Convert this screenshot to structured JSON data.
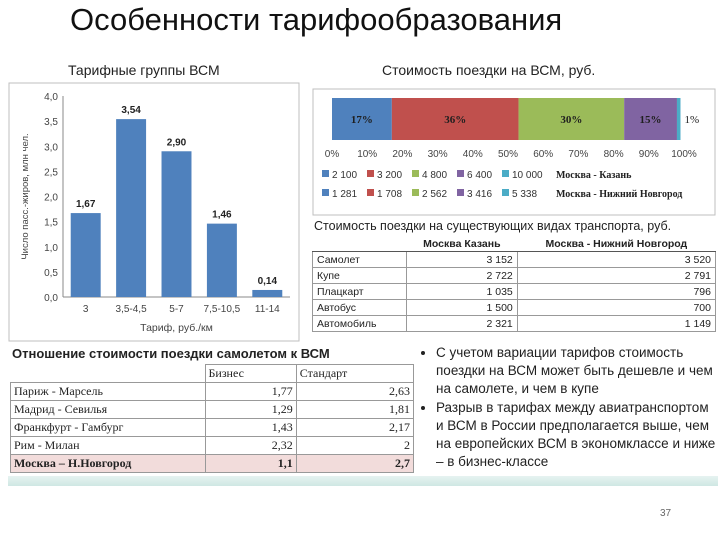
{
  "slide_title": "Особенности тарифообразования",
  "page_number": "37",
  "chart_data": [
    {
      "type": "bar",
      "title": "Тарифные группы ВСМ",
      "xlabel": "Тариф, руб./км",
      "ylabel": "Число пасс.-жиров, млн чел.",
      "categories": [
        "3",
        "3,5-4,5",
        "5-7",
        "7,5-10,5",
        "11-14"
      ],
      "values": [
        1.67,
        3.54,
        2.9,
        1.46,
        0.14
      ],
      "value_labels": [
        "1,67",
        "3,54",
        "2,90",
        "1,46",
        "0,14"
      ],
      "ylim": [
        0,
        4
      ],
      "yticks": [
        "0,0",
        "0,5",
        "1,0",
        "1,5",
        "2,0",
        "2,5",
        "3,0",
        "3,5",
        "4,0"
      ],
      "grid": false,
      "colors": [
        "#4f81bd"
      ]
    },
    {
      "type": "bar",
      "orientation": "horizontal-stacked-100",
      "title": "Стоимость поездки на ВСМ, руб.",
      "categories": [
        "Москва - Казань"
      ],
      "series": [
        {
          "label": "17%",
          "value": 17,
          "color": "#4f81bd"
        },
        {
          "label": "36%",
          "value": 36,
          "color": "#c0504d"
        },
        {
          "label": "30%",
          "value": 30,
          "color": "#9bbb59"
        },
        {
          "label": "15%",
          "value": 15,
          "color": "#8064a2"
        },
        {
          "label": "1%",
          "value": 1,
          "color": "#4bacc6"
        }
      ],
      "xlim": [
        0,
        100
      ],
      "xticks": [
        "0%",
        "10%",
        "20%",
        "30%",
        "40%",
        "50%",
        "60%",
        "70%",
        "80%",
        "90%",
        "100%"
      ],
      "legend_rows": [
        {
          "items": [
            "2 100",
            "3 200",
            "4 800",
            "6 400",
            "10 000"
          ],
          "route": "Москва - Казань"
        },
        {
          "items": [
            "1 281",
            "1 708",
            "2 562",
            "3 416",
            "5 338"
          ],
          "route": "Москва - Нижний Новгород"
        }
      ],
      "legend_colors": [
        "#4f81bd",
        "#c0504d",
        "#9bbb59",
        "#8064a2",
        "#4bacc6"
      ]
    },
    {
      "type": "table",
      "title": "Стоимость поездки на существующих видах транспорта, руб.",
      "columns": [
        "Москва   Казань",
        "Москва - Нижний Новгород"
      ],
      "rows": [
        [
          "Самолет",
          "3 152",
          "3 520"
        ],
        [
          "Купе",
          "2 722",
          "2 791"
        ],
        [
          "Плацкарт",
          "1 035",
          "796"
        ],
        [
          "Автобус",
          "1 500",
          "700"
        ],
        [
          "Автомобиль",
          "2 321",
          "1 149"
        ]
      ]
    },
    {
      "type": "table",
      "title": "Отношение стоимости поездки самолетом к ВСМ",
      "columns": [
        "Бизнес",
        "Стандарт"
      ],
      "rows": [
        [
          "Париж - Марсель",
          "1,77",
          "2,63"
        ],
        [
          "Мадрид - Севилья",
          "1,29",
          "1,81"
        ],
        [
          "Франкфурт - Гамбург",
          "1,43",
          "2,17"
        ],
        [
          "Рим - Милан",
          "2,32",
          "2"
        ],
        [
          "Москва – Н.Новгород",
          "1,1",
          "2,7"
        ]
      ]
    }
  ],
  "notes": [
    "С учетом вариации тарифов стоимость поездки на ВСМ может быть дешевле и чем на самолете, и чем в купе",
    "Разрыв в тарифах между авиатранспортом и ВСМ в России предполагается выше, чем на европейских ВСМ в экономклассе и ниже – в бизнес-классе"
  ]
}
